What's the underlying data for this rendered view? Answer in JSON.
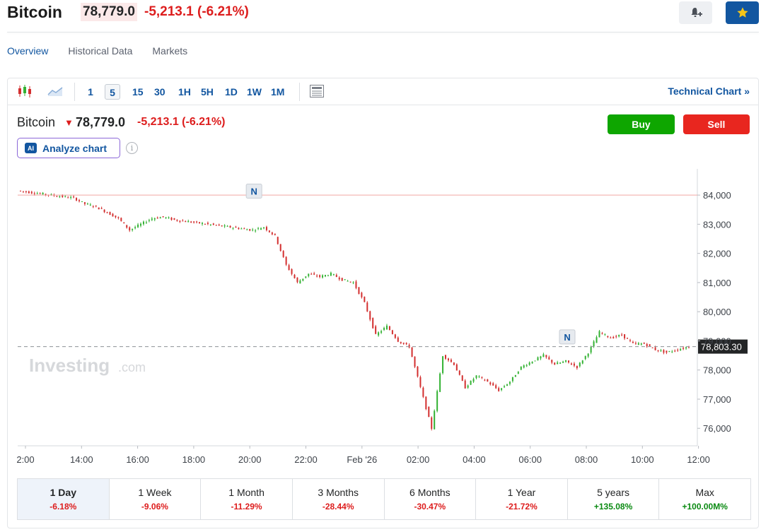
{
  "header": {
    "title": "Bitcoin",
    "price": "78,779.0",
    "change": "-5,213.1",
    "change_pct": "(-6.21%)"
  },
  "subnav": [
    "Overview",
    "Historical Data",
    "Markets"
  ],
  "toolbar": {
    "timeframes": [
      "1",
      "5",
      "15",
      "30",
      "1H",
      "5H",
      "1D",
      "1W",
      "1M"
    ],
    "active_timeframe": "5",
    "technical_chart": "Technical Chart »"
  },
  "instrument": {
    "name": "Bitcoin",
    "price": "78,779.0",
    "change": "-5,213.1 (-6.21%)",
    "buy": "Buy",
    "sell": "Sell",
    "analyze": "Analyze chart",
    "ai_badge": "AI"
  },
  "watermark": {
    "brand": "Investing",
    "suffix": ".com"
  },
  "colors": {
    "up": "#33b233",
    "down": "#d32f2f",
    "accent": "#1256a0"
  },
  "chart_data": {
    "type": "line",
    "style": "candlestick",
    "x_ticks": [
      "2:00",
      "14:00",
      "16:00",
      "18:00",
      "20:00",
      "22:00",
      "Feb '26",
      "02:00",
      "04:00",
      "06:00",
      "08:00",
      "10:00",
      "12:00"
    ],
    "y_ticks": [
      "84,000",
      "83,000",
      "82,000",
      "81,000",
      "80,000",
      "79,000",
      "78,000",
      "77,000",
      "76,000"
    ],
    "ylim": [
      75400,
      84900
    ],
    "reference_level": 84000,
    "current_price_label": "78,803.30",
    "current_price": 78803.3,
    "news_markers": [
      {
        "label": "N",
        "time_index": 3.5,
        "price": 83700
      },
      {
        "label": "N",
        "time_index": 8.2,
        "price": 78700
      }
    ],
    "series": [
      {
        "values": [
          84150,
          84100,
          84050,
          84000,
          83950,
          83900,
          83700,
          83600,
          83400,
          83200,
          82800,
          83000,
          83200,
          83250,
          83150,
          83100,
          83050,
          83000,
          82950,
          82900,
          82850,
          82800,
          82900,
          82600,
          81600,
          81000,
          81300,
          81200,
          81300,
          81100,
          81000,
          80300,
          79200,
          79500,
          79000,
          78800,
          77400,
          76000,
          78500,
          78200,
          77400,
          77800,
          77600,
          77300,
          77600,
          78100,
          78300,
          78500,
          78200,
          78300,
          78100,
          78600,
          79300,
          79100,
          79200,
          78900,
          78900,
          78700,
          78600,
          78700,
          78800
        ]
      }
    ]
  },
  "periods": [
    {
      "label": "1 Day",
      "change": "-6.18%",
      "dir": "neg"
    },
    {
      "label": "1 Week",
      "change": "-9.06%",
      "dir": "neg"
    },
    {
      "label": "1 Month",
      "change": "-11.29%",
      "dir": "neg"
    },
    {
      "label": "3 Months",
      "change": "-28.44%",
      "dir": "neg"
    },
    {
      "label": "6 Months",
      "change": "-30.47%",
      "dir": "neg"
    },
    {
      "label": "1 Year",
      "change": "-21.72%",
      "dir": "neg"
    },
    {
      "label": "5 years",
      "change": "+135.08%",
      "dir": "pos"
    },
    {
      "label": "Max",
      "change": "+100.00M%",
      "dir": "pos"
    }
  ]
}
